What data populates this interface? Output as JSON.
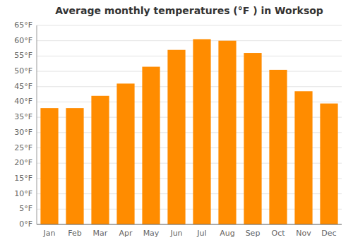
{
  "chart_data": {
    "type": "bar",
    "title": "Average monthly temperatures (°F ) in Worksop",
    "categories": [
      "Jan",
      "Feb",
      "Mar",
      "Apr",
      "May",
      "Jun",
      "Jul",
      "Aug",
      "Sep",
      "Oct",
      "Nov",
      "Dec"
    ],
    "values": [
      38,
      38,
      42,
      46,
      51.5,
      57,
      60.5,
      60,
      56,
      50.5,
      43.5,
      39.5
    ],
    "color": "#FF8C00",
    "ylim": [
      0,
      65
    ],
    "yticks": [
      {
        "value": 0,
        "label": "0°F"
      },
      {
        "value": 5,
        "label": "5°F"
      },
      {
        "value": 10,
        "label": "10°F"
      },
      {
        "value": 15,
        "label": "15°F"
      },
      {
        "value": 20,
        "label": "20°F"
      },
      {
        "value": 25,
        "label": "25°F"
      },
      {
        "value": 30,
        "label": "30°F"
      },
      {
        "value": 35,
        "label": "35°F"
      },
      {
        "value": 40,
        "label": "40°F"
      },
      {
        "value": 45,
        "label": "45°F"
      },
      {
        "value": 50,
        "label": "50°F"
      },
      {
        "value": 55,
        "label": "55°F"
      },
      {
        "value": 60,
        "label": "60°F"
      },
      {
        "value": 65,
        "label": "65°F"
      }
    ],
    "grid": true
  }
}
